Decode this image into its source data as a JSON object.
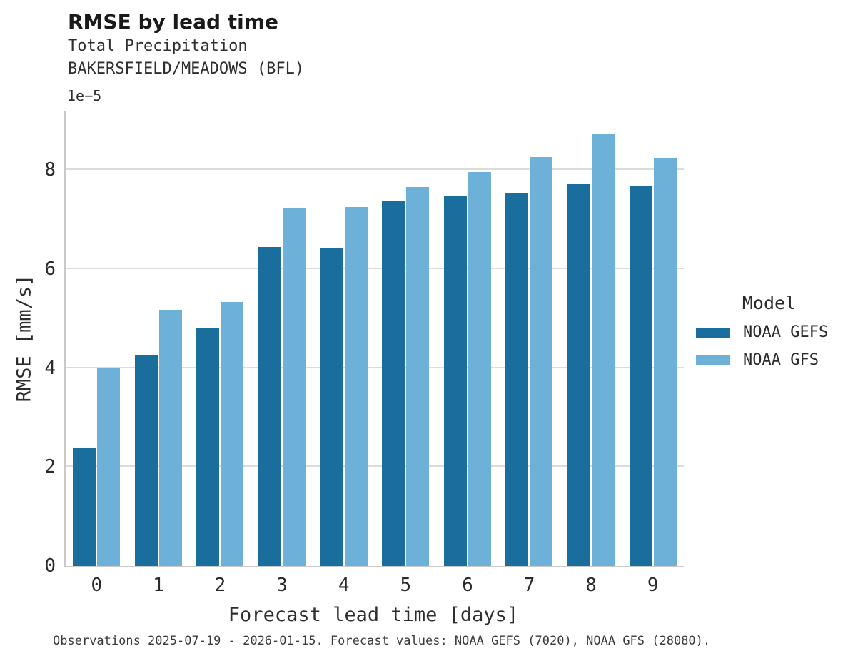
{
  "header": {
    "title": "RMSE by lead time",
    "subtitle1": "Total Precipitation",
    "subtitle2": "BAKERSFIELD/MEADOWS (BFL)"
  },
  "footer_note": "Observations 2025-07-19 - 2026-01-15. Forecast values: NOAA GEFS (7020), NOAA GFS (28080).",
  "chart_data": {
    "type": "bar",
    "title": "RMSE by lead time",
    "subtitle": [
      "Total Precipitation",
      "BAKERSFIELD/MEADOWS (BFL)"
    ],
    "categories": [
      "0",
      "1",
      "2",
      "3",
      "4",
      "5",
      "6",
      "7",
      "8",
      "9"
    ],
    "series": [
      {
        "name": "NOAA GEFS",
        "color": "#1a6e9e",
        "values": [
          2.4,
          4.26,
          4.82,
          6.45,
          6.43,
          7.37,
          7.49,
          7.54,
          7.72,
          7.67
        ]
      },
      {
        "name": "NOAA GFS",
        "color": "#6eb1d8",
        "values": [
          4.01,
          5.17,
          5.33,
          7.24,
          7.26,
          7.66,
          7.96,
          8.27,
          8.73,
          8.25
        ]
      }
    ],
    "value_offset_label": "1e−5",
    "value_scale": 1e-05,
    "xlabel": "Forecast lead time [days]",
    "ylabel": "RMSE [mm/s]",
    "ylim": [
      0,
      9.2
    ],
    "yticks": [
      0,
      2,
      4,
      6,
      8
    ],
    "grid": "horizontal",
    "legend_title": "Model",
    "legend_position": "right",
    "colors": {
      "grid": "#dcdcdc",
      "spine": "#c9c9c9"
    }
  }
}
